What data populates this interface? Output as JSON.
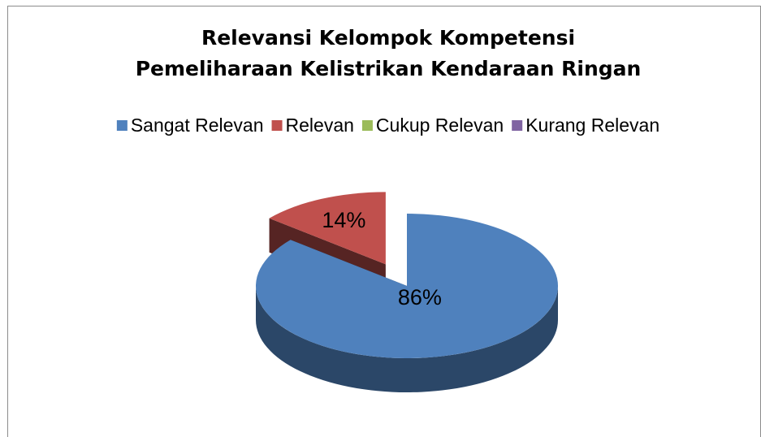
{
  "chart_data": {
    "type": "pie3d",
    "title": [
      "Relevansi Kelompok Kompetensi",
      "Pemeliharaan Kelistrikan Kendaraan Ringan"
    ],
    "categories": [
      "Sangat Relevan",
      "Relevan",
      "Cukup Relevan",
      "Kurang Relevan"
    ],
    "values": [
      86,
      14,
      0,
      0
    ],
    "value_labels": [
      "86%",
      "14%",
      null,
      null
    ],
    "colors": [
      "#4f81bd",
      "#c0504d",
      "#9bbb59",
      "#8064a2"
    ],
    "exploded": [
      false,
      true,
      false,
      false
    ],
    "legend": "top"
  }
}
